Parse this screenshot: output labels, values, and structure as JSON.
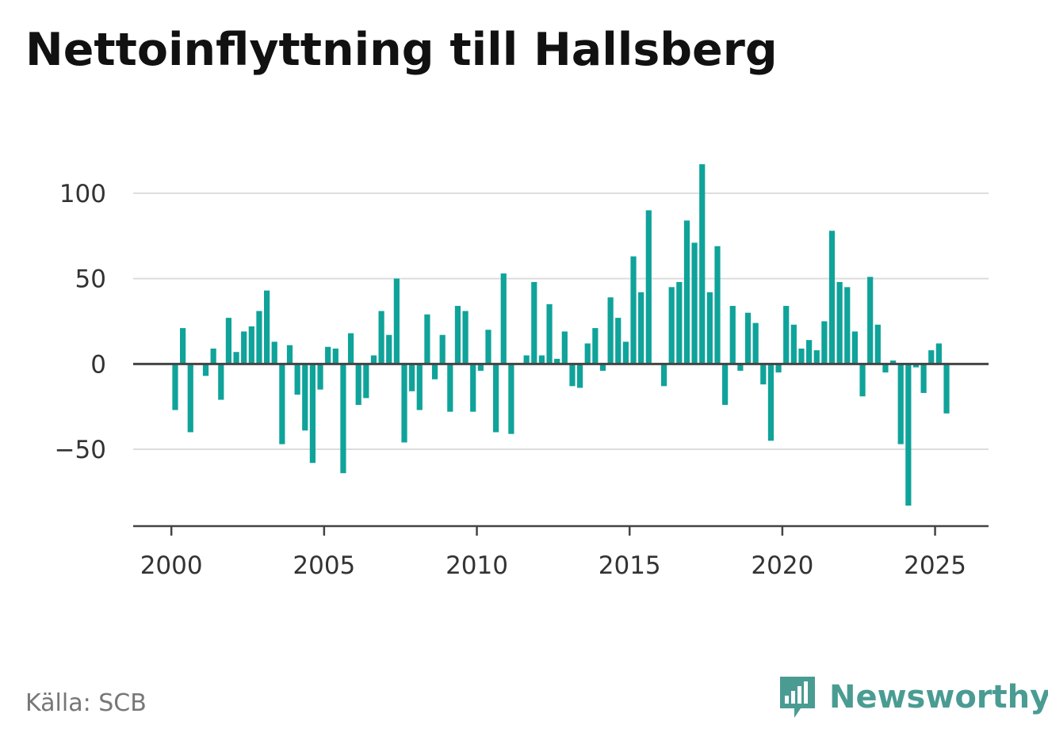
{
  "title": "Nettoinflyttning till Hallsberg",
  "source": "Källa: SCB",
  "brand": {
    "name": "Newsworthy",
    "icon": "newsworthy-logo-icon",
    "color": "#4a9c93"
  },
  "colors": {
    "bar": "#0fa39a",
    "axis": "#444444",
    "grid": "#dddddd"
  },
  "chart_data": {
    "type": "bar",
    "title": "Nettoinflyttning till Hallsberg",
    "xlabel": "",
    "ylabel": "",
    "x_ticks": [
      2000,
      2005,
      2010,
      2015,
      2020,
      2025
    ],
    "y_ticks": [
      -50,
      0,
      50,
      100
    ],
    "y_tick_labels": [
      "−50",
      "0",
      "50",
      "100"
    ],
    "xlim": [
      1998.75,
      2026.75
    ],
    "ylim": [
      -95,
      125
    ],
    "grid": true,
    "series": [
      {
        "values": [
          [
            2000.125,
            -27
          ],
          [
            2000.375,
            21
          ],
          [
            2000.625,
            -40
          ],
          [
            2000.875,
            0
          ],
          [
            2001.125,
            -7
          ],
          [
            2001.375,
            9
          ],
          [
            2001.625,
            -21
          ],
          [
            2001.875,
            27
          ],
          [
            2002.125,
            7
          ],
          [
            2002.375,
            19
          ],
          [
            2002.625,
            22
          ],
          [
            2002.875,
            31
          ],
          [
            2003.125,
            43
          ],
          [
            2003.375,
            13
          ],
          [
            2003.625,
            -47
          ],
          [
            2003.875,
            11
          ],
          [
            2004.125,
            -18
          ],
          [
            2004.375,
            -39
          ],
          [
            2004.625,
            -58
          ],
          [
            2004.875,
            -15
          ],
          [
            2005.125,
            10
          ],
          [
            2005.375,
            9
          ],
          [
            2005.625,
            -64
          ],
          [
            2005.875,
            18
          ],
          [
            2006.125,
            -24
          ],
          [
            2006.375,
            -20
          ],
          [
            2006.625,
            5
          ],
          [
            2006.875,
            31
          ],
          [
            2007.125,
            17
          ],
          [
            2007.375,
            50
          ],
          [
            2007.625,
            -46
          ],
          [
            2007.875,
            -16
          ],
          [
            2008.125,
            -27
          ],
          [
            2008.375,
            29
          ],
          [
            2008.625,
            -9
          ],
          [
            2008.875,
            17
          ],
          [
            2009.125,
            -28
          ],
          [
            2009.375,
            34
          ],
          [
            2009.625,
            31
          ],
          [
            2009.875,
            -28
          ],
          [
            2010.125,
            -4
          ],
          [
            2010.375,
            20
          ],
          [
            2010.625,
            -40
          ],
          [
            2010.875,
            53
          ],
          [
            2011.125,
            -41
          ],
          [
            2011.375,
            0
          ],
          [
            2011.625,
            5
          ],
          [
            2011.875,
            48
          ],
          [
            2012.125,
            5
          ],
          [
            2012.375,
            35
          ],
          [
            2012.625,
            3
          ],
          [
            2012.875,
            19
          ],
          [
            2013.125,
            -13
          ],
          [
            2013.375,
            -14
          ],
          [
            2013.625,
            12
          ],
          [
            2013.875,
            21
          ],
          [
            2014.125,
            -4
          ],
          [
            2014.375,
            39
          ],
          [
            2014.625,
            27
          ],
          [
            2014.875,
            13
          ],
          [
            2015.125,
            63
          ],
          [
            2015.375,
            42
          ],
          [
            2015.625,
            90
          ],
          [
            2015.875,
            0
          ],
          [
            2016.125,
            -13
          ],
          [
            2016.375,
            45
          ],
          [
            2016.625,
            48
          ],
          [
            2016.875,
            84
          ],
          [
            2017.125,
            71
          ],
          [
            2017.375,
            117
          ],
          [
            2017.625,
            42
          ],
          [
            2017.875,
            69
          ],
          [
            2018.125,
            -24
          ],
          [
            2018.375,
            34
          ],
          [
            2018.625,
            -4
          ],
          [
            2018.875,
            30
          ],
          [
            2019.125,
            24
          ],
          [
            2019.375,
            -12
          ],
          [
            2019.625,
            -45
          ],
          [
            2019.875,
            -5
          ],
          [
            2020.125,
            34
          ],
          [
            2020.375,
            23
          ],
          [
            2020.625,
            9
          ],
          [
            2020.875,
            14
          ],
          [
            2021.125,
            8
          ],
          [
            2021.375,
            25
          ],
          [
            2021.625,
            78
          ],
          [
            2021.875,
            48
          ],
          [
            2022.125,
            45
          ],
          [
            2022.375,
            19
          ],
          [
            2022.625,
            -19
          ],
          [
            2022.875,
            51
          ],
          [
            2023.125,
            23
          ],
          [
            2023.375,
            -5
          ],
          [
            2023.625,
            2
          ],
          [
            2023.875,
            -47
          ],
          [
            2024.125,
            -83
          ],
          [
            2024.375,
            -2
          ],
          [
            2024.625,
            -17
          ],
          [
            2024.875,
            8
          ],
          [
            2025.125,
            12
          ],
          [
            2025.375,
            -29
          ]
        ]
      }
    ]
  }
}
